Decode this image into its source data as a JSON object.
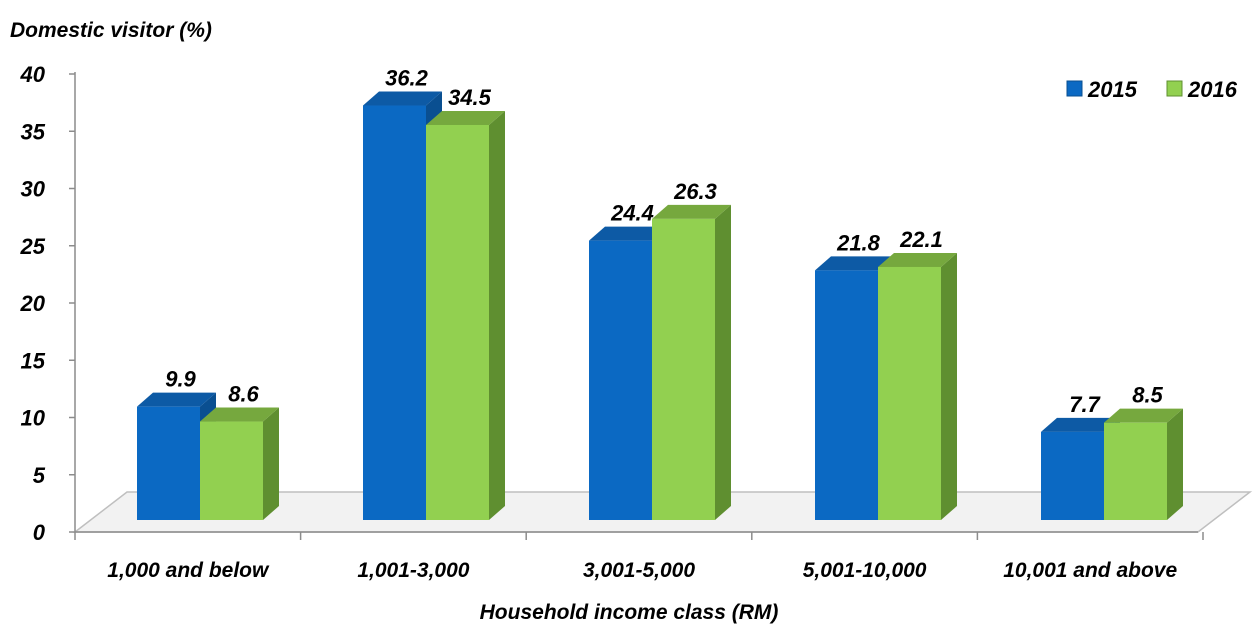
{
  "chart_data": {
    "type": "bar",
    "ylabel": "Domestic visitor (%)",
    "xlabel": "Household income class (RM)",
    "categories": [
      "1,000 and below",
      "1,001-3,000",
      "3,001-5,000",
      "5,001-10,000",
      "10,001 and above"
    ],
    "series": [
      {
        "name": "2015",
        "values": [
          9.9,
          36.2,
          24.4,
          21.8,
          7.7
        ],
        "color": "#0b69c3",
        "side_color": "#0a4f91",
        "top_color": "#0d5aa5"
      },
      {
        "name": "2016",
        "values": [
          8.6,
          34.5,
          26.3,
          22.1,
          8.5
        ],
        "color": "#92d050",
        "side_color": "#5f8f30",
        "top_color": "#76a83e"
      }
    ],
    "ylim": [
      0,
      40
    ],
    "yticks": [
      "0",
      "5",
      "10",
      "15",
      "20",
      "25",
      "30",
      "35",
      "40"
    ],
    "data_labels": [
      [
        "9.9",
        "36.2",
        "24.4",
        "21.8",
        "7.7"
      ],
      [
        "8.6",
        "34.5",
        "26.3",
        "22.1",
        "8.5"
      ]
    ],
    "legend_position": "top-right",
    "grid": false,
    "style": "3d-clustered-column"
  }
}
